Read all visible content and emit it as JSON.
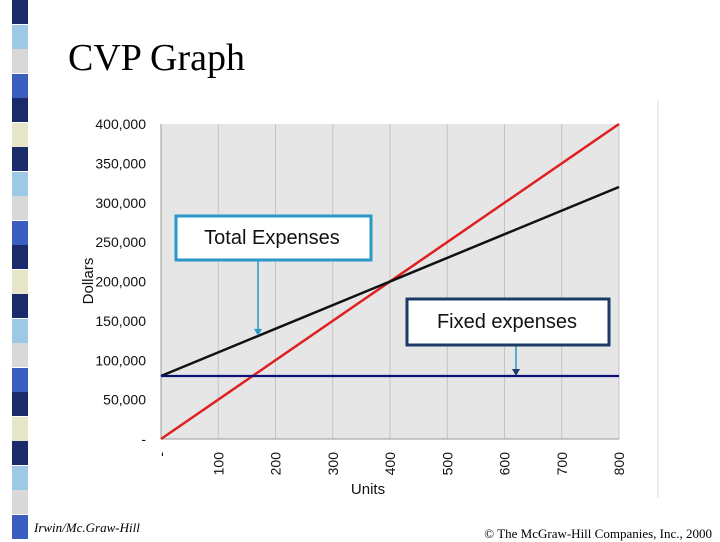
{
  "slide": {
    "title": "CVP Graph",
    "footer_left": "Irwin/Mc.Graw-Hill",
    "footer_right": "© The McGraw-Hill Companies, Inc., 2000"
  },
  "colors": {
    "plot_background": "#e6e6e6",
    "sales_line": "#e02020",
    "total_expenses_line": "#111111",
    "fixed_expenses_line": "#10107a",
    "callout_border": "#2a97c8",
    "callout_border_dark": "#1c3c66",
    "stripe": [
      "#1a2b6b",
      "#e8e6c8",
      "#9ec9e6",
      "#3a5fc0",
      "#d8d8d8",
      "#1a2b6b"
    ]
  },
  "chart_data": {
    "type": "line",
    "xlabel": "Units",
    "ylabel": "Dollars",
    "xlim": [
      0,
      800
    ],
    "ylim": [
      0,
      400000
    ],
    "x_ticks": [
      0,
      100,
      200,
      300,
      400,
      500,
      600,
      700,
      800
    ],
    "x_tick_labels": [
      "-",
      "100",
      "200",
      "300",
      "400",
      "500",
      "600",
      "700",
      "800"
    ],
    "y_ticks": [
      0,
      50000,
      100000,
      150000,
      200000,
      250000,
      300000,
      350000,
      400000
    ],
    "y_tick_labels": [
      "-",
      "50,000",
      "100,000",
      "150,000",
      "200,000",
      "250,000",
      "300,000",
      "350,000",
      "400,000"
    ],
    "grid": "vertical",
    "series": [
      {
        "key": "sales",
        "x": [
          0,
          800
        ],
        "y": [
          0,
          400000
        ]
      },
      {
        "key": "total_expenses",
        "x": [
          0,
          800
        ],
        "y": [
          80000,
          320000
        ]
      },
      {
        "key": "fixed_expenses",
        "x": [
          0,
          800
        ],
        "y": [
          80000,
          80000
        ]
      }
    ],
    "annotations": [
      {
        "key": "total_expenses_callout",
        "text": "Total Expenses",
        "points_to": {
          "x": 170,
          "y": 131000
        }
      },
      {
        "key": "fixed_expenses_callout",
        "text": "Fixed expenses",
        "points_to": {
          "x": 630,
          "y": 80000
        }
      }
    ]
  }
}
